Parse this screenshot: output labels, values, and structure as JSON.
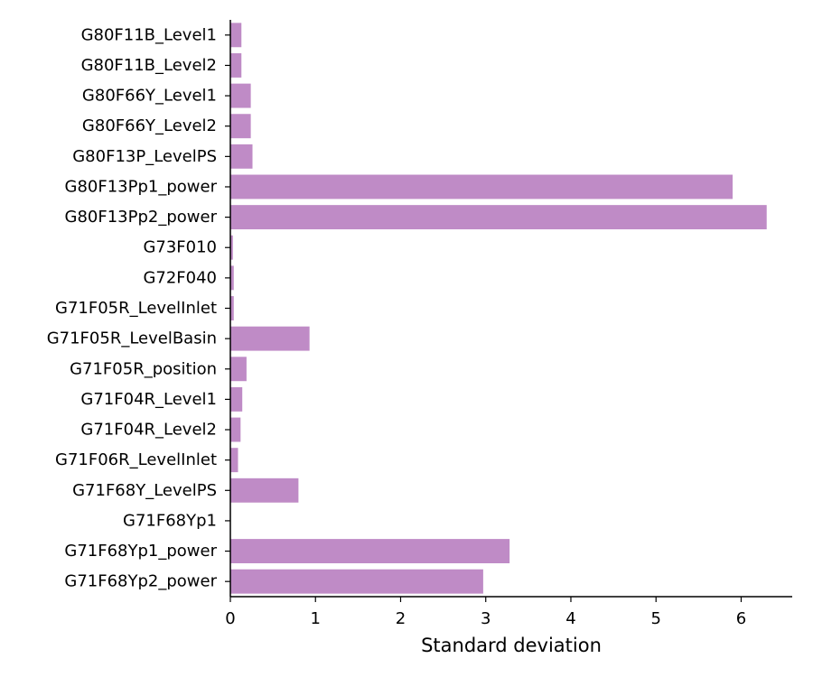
{
  "chart_data": {
    "type": "bar",
    "orientation": "horizontal",
    "title": "",
    "xlabel": "Standard deviation",
    "ylabel": "",
    "xlim": [
      0,
      6.6
    ],
    "xticks": [
      "0",
      "1",
      "2",
      "3",
      "4",
      "5",
      "6"
    ],
    "grid": false,
    "bar_color": "#bf8bc6",
    "categories": [
      "G80F11B_Level1",
      "G80F11B_Level2",
      "G80F66Y_Level1",
      "G80F66Y_Level2",
      "G80F13P_LevelPS",
      "G80F13Pp1_power",
      "G80F13Pp2_power",
      "G73F010",
      "G72F040",
      "G71F05R_LevelInlet",
      "G71F05R_LevelBasin",
      "G71F05R_position",
      "G71F04R_Level1",
      "G71F04R_Level2",
      "G71F06R_LevelInlet",
      "G71F68Y_LevelPS",
      "G71F68Yp1",
      "G71F68Yp1_power",
      "G71F68Yp2_power"
    ],
    "values": [
      0.13,
      0.13,
      0.24,
      0.24,
      0.26,
      5.9,
      6.3,
      0.03,
      0.04,
      0.04,
      0.93,
      0.19,
      0.14,
      0.12,
      0.09,
      0.8,
      0.0,
      3.28,
      2.97
    ]
  }
}
